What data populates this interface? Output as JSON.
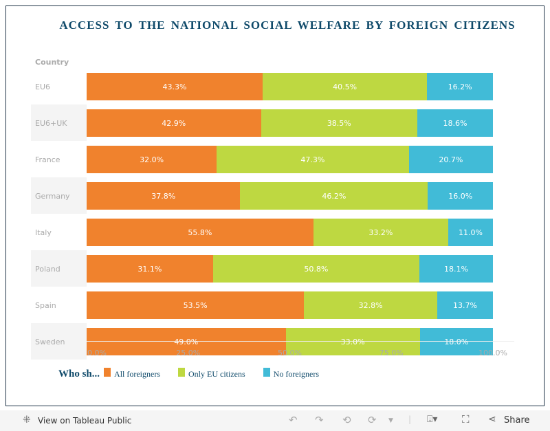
{
  "title": "ACCESS TO THE NATIONAL SOCIAL WELFARE BY FOREIGN CITIZENS",
  "chart_data": {
    "type": "bar",
    "stacked": true,
    "orientation": "horizontal",
    "row_header": "Country",
    "categories": [
      "EU6",
      "EU6+UK",
      "France",
      "Germany",
      "Italy",
      "Poland",
      "Spain",
      "Sweden"
    ],
    "series": [
      {
        "name": "All foreigners",
        "color": "#f0822d",
        "values": [
          43.3,
          42.9,
          32.0,
          37.8,
          55.8,
          31.1,
          53.5,
          49.0
        ],
        "labels": [
          "43.3%",
          "42.9%",
          "32.0%",
          "37.8%",
          "55.8%",
          "31.1%",
          "53.5%",
          "49.0%"
        ]
      },
      {
        "name": "Only EU citizens",
        "color": "#bed841",
        "values": [
          40.5,
          38.5,
          47.3,
          46.2,
          33.2,
          50.8,
          32.8,
          33.0
        ],
        "labels": [
          "40.5%",
          "38.5%",
          "47.3%",
          "46.2%",
          "33.2%",
          "50.8%",
          "32.8%",
          "33.0%"
        ]
      },
      {
        "name": "No foreigners",
        "color": "#41bbd7",
        "values": [
          16.2,
          18.6,
          20.7,
          16.0,
          11.0,
          18.1,
          13.7,
          18.0
        ],
        "labels": [
          "16.2%",
          "18.6%",
          "20.7%",
          "16.0%",
          "11.0%",
          "18.1%",
          "13.7%",
          "18.0%"
        ]
      }
    ],
    "xlim": [
      0,
      100
    ],
    "x_ticks": [
      "0.0%",
      "25.0%",
      "50.0%",
      "75.0%",
      "100.0%"
    ],
    "legend_title": "Who sh...",
    "legend_position": "bottom-left"
  },
  "toolbar": {
    "view_label": "View on Tableau Public",
    "share_label": "Share"
  }
}
